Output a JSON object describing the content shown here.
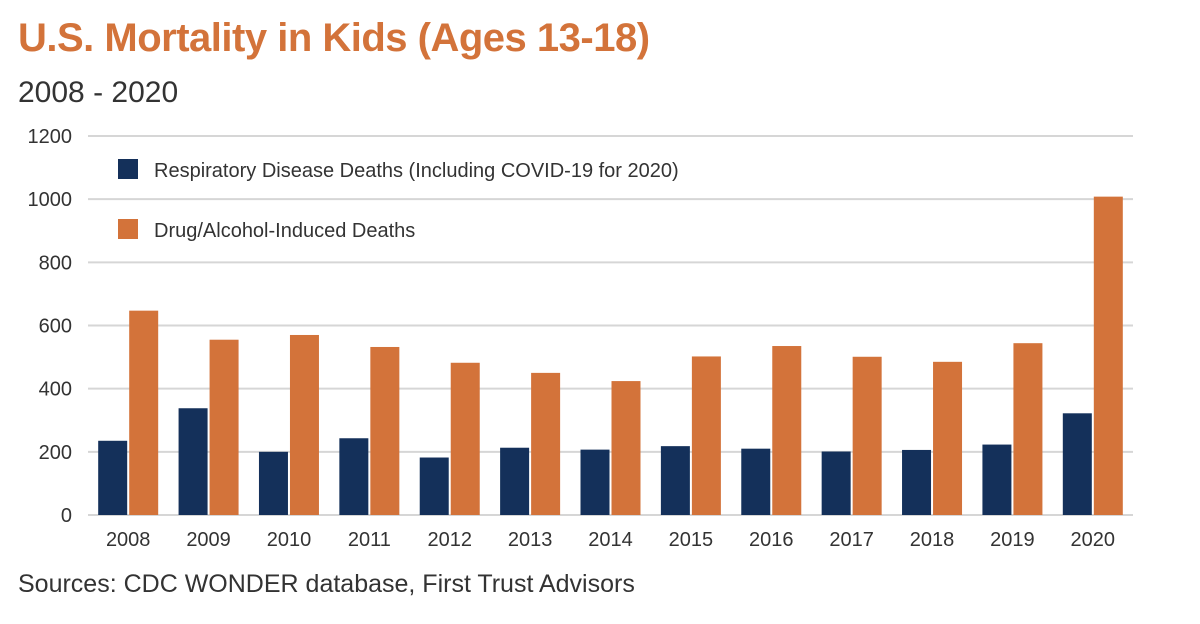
{
  "header": {
    "title": "U.S. Mortality in Kids (Ages 13-18)",
    "subtitle": "2008 - 2020"
  },
  "footer": {
    "source": "Sources: CDC WONDER database, First Trust Advisors"
  },
  "colors": {
    "respiratory": "#14305a",
    "drug": "#d3733a",
    "grid": "#d6d6d6",
    "title": "#d3733a"
  },
  "chart_data": {
    "type": "bar",
    "title": "U.S. Mortality in Kids (Ages 13-18)",
    "subtitle": "2008 - 2020",
    "categories": [
      "2008",
      "2009",
      "2010",
      "2011",
      "2012",
      "2013",
      "2014",
      "2015",
      "2016",
      "2017",
      "2018",
      "2019",
      "2020"
    ],
    "series": [
      {
        "name": "Respiratory Disease Deaths (Including COVID-19 for 2020)",
        "values": [
          235,
          338,
          200,
          243,
          182,
          213,
          207,
          218,
          210,
          201,
          206,
          223,
          322
        ]
      },
      {
        "name": "Drug/Alcohol-Induced Deaths",
        "values": [
          647,
          555,
          570,
          532,
          482,
          450,
          424,
          502,
          535,
          501,
          485,
          544,
          1008
        ]
      }
    ],
    "ylim": [
      0,
      1200
    ],
    "yticks": [
      0,
      200,
      400,
      600,
      800,
      1000,
      1200
    ],
    "grid": true,
    "legend": "top-left"
  }
}
